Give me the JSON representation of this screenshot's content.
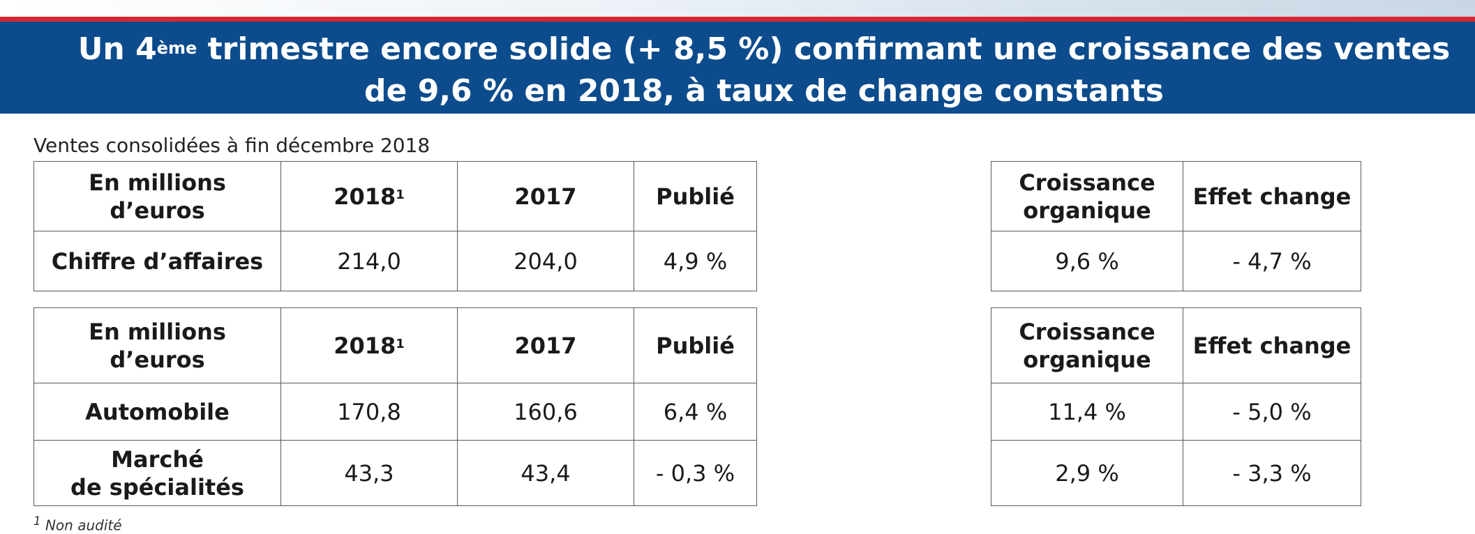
{
  "header": {
    "title_part1": "Un 4",
    "title_sup": "ème",
    "title_part2": " trimestre encore solide (+ 8,5 %) confirmant une croissance des ventes",
    "title_line2": "de 9,6 % en 2018, à taux de change constants"
  },
  "caption": "Ventes consolidées à fin décembre 2018",
  "table_sales_total": {
    "headers": {
      "col0": "En millions d’euros",
      "col1": "2018",
      "col1_note": "1",
      "col2": "2017",
      "col3": "Publié"
    },
    "rows": [
      {
        "label": "Chiffre d’affaires",
        "y2018": "214,0",
        "y2017": "204,0",
        "publie": "4,9 %"
      }
    ]
  },
  "table_growth_total": {
    "headers": {
      "col0": "Croissance organique",
      "col1": "Effet change"
    },
    "rows": [
      {
        "organic": "9,6 %",
        "fx": "- 4,7 %"
      }
    ]
  },
  "table_sales_segments": {
    "headers": {
      "col0": "En millions d’euros",
      "col1": "2018",
      "col1_note": "1",
      "col2": "2017",
      "col3": "Publié"
    },
    "rows": [
      {
        "label": "Automobile",
        "y2018": "170,8",
        "y2017": "160,6",
        "publie": "6,4 %"
      },
      {
        "label_line1": "Marché",
        "label_line2": "de spécialités",
        "y2018": "43,3",
        "y2017": "43,4",
        "publie": "- 0,3 %"
      }
    ]
  },
  "table_growth_segments": {
    "headers": {
      "col0": "Croissance organique",
      "col1": "Effet change"
    },
    "rows": [
      {
        "organic": "11,4 %",
        "fx": "- 5,0 %"
      },
      {
        "organic": "2,9 %",
        "fx": "- 3,3 %"
      }
    ]
  },
  "footnote": {
    "mark": "1",
    "text": " Non audité"
  },
  "colors": {
    "banner": "#0d4c8c",
    "accent_red": "#d8262f",
    "border": "#5a5a5a"
  }
}
